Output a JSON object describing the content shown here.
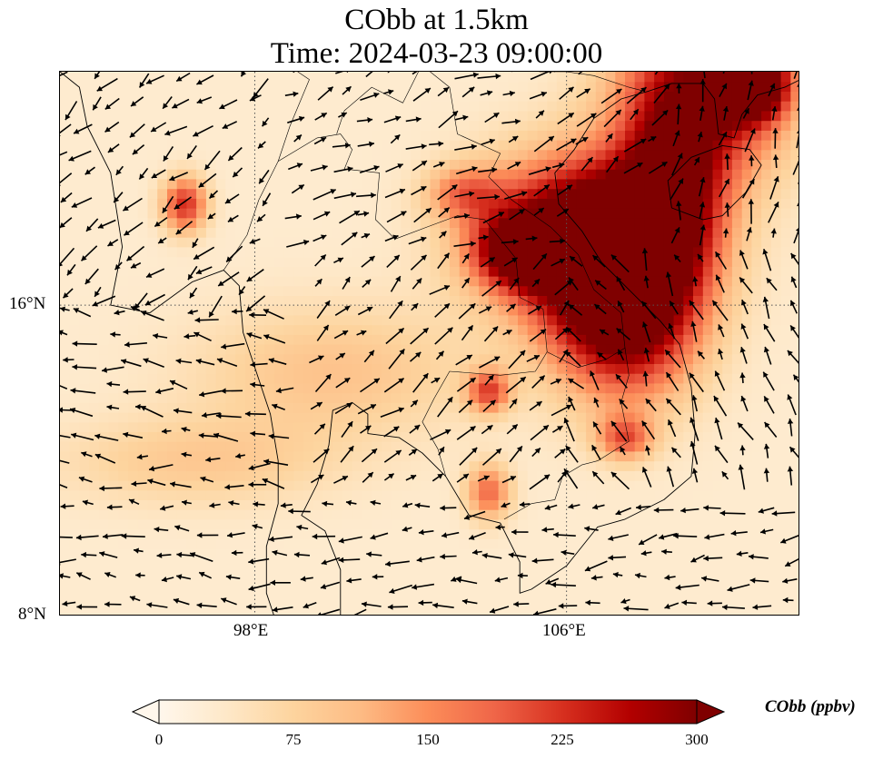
{
  "title": {
    "line1": "CObb at 1.5km",
    "line2": "Time: 2024-03-23 09:00:00"
  },
  "axes": {
    "lat_ticks": [
      "16°N",
      "8°N"
    ],
    "lon_ticks": [
      "98°E",
      "106°E"
    ],
    "extent": {
      "lon_min": 93.0,
      "lon_max": 112.0,
      "lat_min": 8.0,
      "lat_max": 22.0
    },
    "gridlines": "dotted"
  },
  "colorbar": {
    "label": "CObb (ppbv)",
    "ticks": [
      "0",
      "75",
      "150",
      "225",
      "300"
    ],
    "range": [
      0,
      300
    ],
    "extend": "both",
    "colormap": "OrRd",
    "colors": [
      "#fff7ec",
      "#fee8c8",
      "#fdd49e",
      "#fdbb84",
      "#fc8d59",
      "#ef6548",
      "#d7301f",
      "#b30000",
      "#7f0000"
    ]
  },
  "field": {
    "background_level": 30,
    "plumes": [
      {
        "lon": 106.5,
        "lat": 17.8,
        "lat_spread": 1.4,
        "lon_spread": 1.8,
        "value": 340
      },
      {
        "lon": 107.5,
        "lat": 16.0,
        "lat_spread": 1.6,
        "lon_spread": 1.3,
        "value": 330
      },
      {
        "lon": 104.8,
        "lat": 17.4,
        "lat_spread": 0.6,
        "lon_spread": 0.8,
        "value": 230
      },
      {
        "lon": 109.5,
        "lat": 21.5,
        "lat_spread": 1.6,
        "lon_spread": 1.5,
        "value": 260
      },
      {
        "lon": 110.8,
        "lat": 21.7,
        "lat_spread": 0.6,
        "lon_spread": 0.6,
        "value": 320
      },
      {
        "lon": 108.7,
        "lat": 19.0,
        "lat_spread": 1.5,
        "lon_spread": 0.9,
        "value": 190
      },
      {
        "lon": 96.2,
        "lat": 18.6,
        "lat_spread": 0.5,
        "lon_spread": 0.4,
        "value": 200
      },
      {
        "lon": 103.4,
        "lat": 18.9,
        "lat_spread": 0.5,
        "lon_spread": 0.7,
        "value": 120
      },
      {
        "lon": 104.0,
        "lat": 13.8,
        "lat_spread": 0.4,
        "lon_spread": 0.4,
        "value": 170
      },
      {
        "lon": 107.5,
        "lat": 12.6,
        "lat_spread": 0.4,
        "lon_spread": 0.5,
        "value": 150
      },
      {
        "lon": 104.0,
        "lat": 11.2,
        "lat_spread": 0.5,
        "lon_spread": 0.4,
        "value": 150
      },
      {
        "lon": 100.0,
        "lat": 14.3,
        "lat_spread": 1.2,
        "lon_spread": 2.5,
        "value": 70
      },
      {
        "lon": 96.5,
        "lat": 12.0,
        "lat_spread": 0.8,
        "lon_spread": 2.5,
        "value": 60
      }
    ]
  },
  "wind_vectors": {
    "scale": "arrows",
    "regions": [
      {
        "name": "south-china",
        "lon": [
          108.5,
          112.0
        ],
        "lat": [
          17.0,
          22.0
        ],
        "u": 0.2,
        "v": 1.0
      },
      {
        "name": "tonkin",
        "lon": [
          106.0,
          108.5
        ],
        "lat": [
          19.0,
          22.0
        ],
        "u": 0.8,
        "v": 0.7
      },
      {
        "name": "northern-laos",
        "lon": [
          98.5,
          106.0
        ],
        "lat": [
          17.0,
          22.0
        ],
        "u": 0.9,
        "v": 0.4
      },
      {
        "name": "myanmar",
        "lon": [
          93.0,
          98.5
        ],
        "lat": [
          16.0,
          22.0
        ],
        "u": -0.6,
        "v": -0.5
      },
      {
        "name": "andaman",
        "lon": [
          93.0,
          99.0
        ],
        "lat": [
          8.0,
          16.0
        ],
        "u": -1.0,
        "v": 0.1
      },
      {
        "name": "thailand-cambodia",
        "lon": [
          99.0,
          106.0
        ],
        "lat": [
          11.0,
          17.0
        ],
        "u": 0.6,
        "v": 0.5
      },
      {
        "name": "gulf-of-thailand",
        "lon": [
          99.0,
          112.0
        ],
        "lat": [
          8.0,
          11.0
        ],
        "u": -1.0,
        "v": -0.15
      },
      {
        "name": "south-china-sea",
        "lon": [
          108.0,
          112.0
        ],
        "lat": [
          11.0,
          17.0
        ],
        "u": -0.3,
        "v": 0.7
      },
      {
        "name": "vietnam-coast",
        "lon": [
          106.0,
          108.0
        ],
        "lat": [
          11.0,
          17.0
        ],
        "u": -0.5,
        "v": 0.6
      }
    ]
  },
  "coastlines": {
    "mainland": [
      [
        93.0,
        22.0
      ],
      [
        93.5,
        21.6
      ],
      [
        93.7,
        20.6
      ],
      [
        94.3,
        19.4
      ],
      [
        94.6,
        17.5
      ],
      [
        94.3,
        16.0
      ],
      [
        95.3,
        15.8
      ],
      [
        96.4,
        16.6
      ],
      [
        97.2,
        16.9
      ],
      [
        97.6,
        16.5
      ],
      [
        97.7,
        15.3
      ],
      [
        98.1,
        14.1
      ],
      [
        98.4,
        13.2
      ],
      [
        98.6,
        12.0
      ],
      [
        98.6,
        10.9
      ],
      [
        98.3,
        9.8
      ],
      [
        98.3,
        8.6
      ],
      [
        98.5,
        8.0
      ]
    ],
    "gulf_and_vietnam": [
      [
        100.2,
        8.0
      ],
      [
        100.2,
        9.2
      ],
      [
        99.8,
        10.2
      ],
      [
        99.2,
        10.6
      ],
      [
        99.6,
        11.4
      ],
      [
        99.9,
        12.4
      ],
      [
        100.0,
        13.3
      ],
      [
        100.5,
        13.5
      ],
      [
        100.9,
        13.2
      ],
      [
        100.9,
        12.7
      ],
      [
        101.7,
        12.6
      ],
      [
        102.3,
        12.2
      ],
      [
        102.9,
        11.6
      ],
      [
        103.5,
        10.6
      ],
      [
        104.3,
        10.4
      ],
      [
        104.8,
        9.4
      ],
      [
        104.8,
        8.6
      ],
      [
        105.1,
        8.7
      ],
      [
        106.0,
        9.3
      ],
      [
        106.8,
        10.3
      ],
      [
        107.5,
        10.5
      ],
      [
        108.5,
        11.0
      ],
      [
        109.2,
        11.6
      ],
      [
        109.3,
        12.7
      ],
      [
        109.2,
        13.9
      ],
      [
        108.9,
        15.0
      ],
      [
        108.4,
        15.6
      ],
      [
        107.7,
        16.3
      ],
      [
        106.9,
        17.1
      ],
      [
        106.4,
        17.9
      ],
      [
        105.8,
        18.6
      ],
      [
        105.7,
        19.4
      ],
      [
        106.2,
        20.0
      ],
      [
        106.7,
        20.8
      ],
      [
        107.4,
        21.3
      ],
      [
        108.1,
        21.5
      ],
      [
        108.7,
        21.7
      ],
      [
        109.5,
        21.7
      ],
      [
        109.8,
        21.3
      ],
      [
        109.9,
        20.4
      ],
      [
        110.3,
        20.3
      ],
      [
        110.5,
        20.9
      ],
      [
        110.9,
        21.4
      ],
      [
        111.6,
        21.6
      ],
      [
        112.0,
        21.8
      ]
    ],
    "hainan": [
      [
        108.7,
        18.5
      ],
      [
        108.6,
        19.2
      ],
      [
        109.2,
        19.8
      ],
      [
        110.0,
        20.1
      ],
      [
        110.7,
        20.0
      ],
      [
        111.0,
        19.6
      ],
      [
        110.6,
        18.9
      ],
      [
        110.0,
        18.3
      ],
      [
        109.5,
        18.2
      ],
      [
        108.7,
        18.5
      ]
    ]
  },
  "borders": [
    [
      [
        97.2,
        16.9
      ],
      [
        97.8,
        17.8
      ],
      [
        98.1,
        18.7
      ],
      [
        98.6,
        19.7
      ],
      [
        99.6,
        20.3
      ],
      [
        100.2,
        20.4
      ],
      [
        100.5,
        20.0
      ],
      [
        100.3,
        19.5
      ],
      [
        101.2,
        19.4
      ],
      [
        101.1,
        18.2
      ],
      [
        101.6,
        17.7
      ],
      [
        102.4,
        18.0
      ],
      [
        103.2,
        18.3
      ],
      [
        103.9,
        18.2
      ],
      [
        104.7,
        17.2
      ],
      [
        104.8,
        16.2
      ],
      [
        105.4,
        15.9
      ],
      [
        105.5,
        14.8
      ],
      [
        105.2,
        14.3
      ],
      [
        104.3,
        14.2
      ],
      [
        103.0,
        14.3
      ],
      [
        102.6,
        13.6
      ],
      [
        102.3,
        13.0
      ],
      [
        102.7,
        12.3
      ],
      [
        102.9,
        11.6
      ]
    ],
    [
      [
        105.5,
        14.8
      ],
      [
        106.3,
        14.4
      ],
      [
        107.0,
        14.6
      ],
      [
        107.5,
        14.9
      ],
      [
        107.6,
        14.2
      ],
      [
        107.4,
        13.5
      ],
      [
        107.6,
        12.5
      ],
      [
        106.8,
        12.0
      ],
      [
        106.4,
        11.9
      ],
      [
        105.9,
        11.6
      ],
      [
        105.7,
        11.0
      ],
      [
        105.1,
        10.9
      ],
      [
        104.4,
        10.5
      ]
    ],
    [
      [
        107.5,
        14.9
      ],
      [
        107.4,
        15.8
      ],
      [
        106.7,
        16.4
      ],
      [
        106.3,
        17.3
      ],
      [
        105.6,
        18.0
      ],
      [
        104.6,
        18.7
      ],
      [
        104.0,
        19.3
      ],
      [
        104.3,
        19.9
      ],
      [
        103.2,
        20.4
      ],
      [
        103.0,
        21.6
      ],
      [
        102.5,
        22.0
      ]
    ],
    [
      [
        100.1,
        20.4
      ],
      [
        100.3,
        21.0
      ],
      [
        101.0,
        21.6
      ],
      [
        101.8,
        21.2
      ],
      [
        102.2,
        22.0
      ]
    ],
    [
      [
        98.6,
        19.7
      ],
      [
        98.9,
        20.6
      ],
      [
        99.4,
        21.8
      ],
      [
        99.1,
        22.0
      ]
    ],
    [
      [
        105.3,
        22.0
      ],
      [
        106.0,
        22.0
      ],
      [
        106.7,
        21.9
      ],
      [
        107.6,
        21.6
      ],
      [
        108.0,
        21.5
      ]
    ]
  ]
}
